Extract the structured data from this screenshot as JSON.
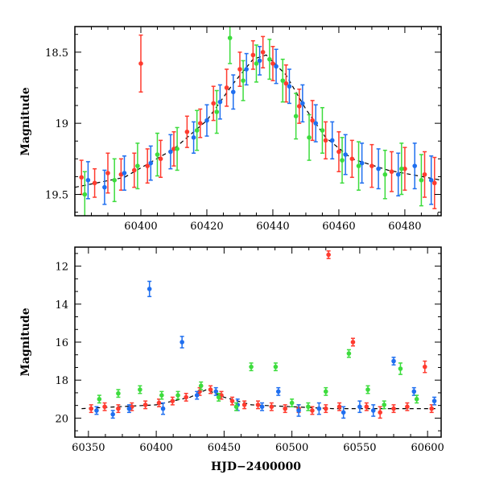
{
  "chart_data": [
    {
      "type": "scatter",
      "title": "",
      "xlabel": "",
      "ylabel": "Magnitude",
      "xlim": [
        60380,
        60491
      ],
      "ylim": [
        19.65,
        18.32
      ],
      "y_inverted": true,
      "x_ticks": [
        60400,
        60420,
        60440,
        60460,
        60480
      ],
      "x_tick_labels": [
        "60400",
        "60420",
        "60440",
        "60460",
        "60480"
      ],
      "y_ticks": [
        18.5,
        19,
        19.5
      ],
      "y_tick_labels": [
        "18.5",
        "19",
        "19.5"
      ],
      "grid": false,
      "series": [
        {
          "color": "#ff3b2f",
          "points": [
            {
              "x": 60382,
              "y": 19.38,
              "err": 0.12
            },
            {
              "x": 60386,
              "y": 19.42,
              "err": 0.1
            },
            {
              "x": 60390,
              "y": 19.35,
              "err": 0.14
            },
            {
              "x": 60394,
              "y": 19.36,
              "err": 0.11
            },
            {
              "x": 60398,
              "y": 19.33,
              "err": 0.12
            },
            {
              "x": 60400,
              "y": 18.58,
              "err": 0.2
            },
            {
              "x": 60402,
              "y": 19.3,
              "err": 0.12
            },
            {
              "x": 60406,
              "y": 19.25,
              "err": 0.13
            },
            {
              "x": 60410,
              "y": 19.18,
              "err": 0.12
            },
            {
              "x": 60414,
              "y": 19.06,
              "err": 0.11
            },
            {
              "x": 60418,
              "y": 19.0,
              "err": 0.1
            },
            {
              "x": 60422,
              "y": 18.86,
              "err": 0.12
            },
            {
              "x": 60426,
              "y": 18.75,
              "err": 0.13
            },
            {
              "x": 60430,
              "y": 18.62,
              "err": 0.12
            },
            {
              "x": 60434,
              "y": 18.52,
              "err": 0.1
            },
            {
              "x": 60437,
              "y": 18.5,
              "err": 0.11
            },
            {
              "x": 60440,
              "y": 18.58,
              "err": 0.12
            },
            {
              "x": 60444,
              "y": 18.72,
              "err": 0.13
            },
            {
              "x": 60448,
              "y": 18.88,
              "err": 0.12
            },
            {
              "x": 60452,
              "y": 18.98,
              "err": 0.14
            },
            {
              "x": 60456,
              "y": 19.12,
              "err": 0.13
            },
            {
              "x": 60460,
              "y": 19.2,
              "err": 0.14
            },
            {
              "x": 60464,
              "y": 19.25,
              "err": 0.13
            },
            {
              "x": 60470,
              "y": 19.3,
              "err": 0.15
            },
            {
              "x": 60476,
              "y": 19.34,
              "err": 0.14
            },
            {
              "x": 60480,
              "y": 19.32,
              "err": 0.15
            },
            {
              "x": 60486,
              "y": 19.36,
              "err": 0.16
            },
            {
              "x": 60489,
              "y": 19.42,
              "err": 0.18
            }
          ]
        },
        {
          "color": "#1f6ff0",
          "points": [
            {
              "x": 60384,
              "y": 19.4,
              "err": 0.13
            },
            {
              "x": 60389,
              "y": 19.45,
              "err": 0.12
            },
            {
              "x": 60395,
              "y": 19.35,
              "err": 0.12
            },
            {
              "x": 60403,
              "y": 19.28,
              "err": 0.12
            },
            {
              "x": 60409,
              "y": 19.2,
              "err": 0.12
            },
            {
              "x": 60416,
              "y": 19.1,
              "err": 0.11
            },
            {
              "x": 60420,
              "y": 18.98,
              "err": 0.11
            },
            {
              "x": 60424,
              "y": 18.85,
              "err": 0.12
            },
            {
              "x": 60428,
              "y": 18.78,
              "err": 0.12
            },
            {
              "x": 60432,
              "y": 18.62,
              "err": 0.11
            },
            {
              "x": 60436,
              "y": 18.56,
              "err": 0.1
            },
            {
              "x": 60441,
              "y": 18.6,
              "err": 0.12
            },
            {
              "x": 60445,
              "y": 18.74,
              "err": 0.12
            },
            {
              "x": 60449,
              "y": 18.86,
              "err": 0.13
            },
            {
              "x": 60453,
              "y": 19.0,
              "err": 0.13
            },
            {
              "x": 60458,
              "y": 19.12,
              "err": 0.13
            },
            {
              "x": 60462,
              "y": 19.22,
              "err": 0.14
            },
            {
              "x": 60467,
              "y": 19.28,
              "err": 0.14
            },
            {
              "x": 60472,
              "y": 19.32,
              "err": 0.14
            },
            {
              "x": 60478,
              "y": 19.36,
              "err": 0.15
            },
            {
              "x": 60483,
              "y": 19.3,
              "err": 0.16
            },
            {
              "x": 60488,
              "y": 19.4,
              "err": 0.17
            }
          ]
        },
        {
          "color": "#3ddc3d",
          "points": [
            {
              "x": 60383,
              "y": 19.5,
              "err": 0.16
            },
            {
              "x": 60392,
              "y": 19.4,
              "err": 0.15
            },
            {
              "x": 60399,
              "y": 19.3,
              "err": 0.16
            },
            {
              "x": 60405,
              "y": 19.22,
              "err": 0.15
            },
            {
              "x": 60411,
              "y": 19.18,
              "err": 0.15
            },
            {
              "x": 60417,
              "y": 19.05,
              "err": 0.14
            },
            {
              "x": 60423,
              "y": 18.92,
              "err": 0.15
            },
            {
              "x": 60427,
              "y": 18.4,
              "err": 0.18
            },
            {
              "x": 60431,
              "y": 18.7,
              "err": 0.14
            },
            {
              "x": 60435,
              "y": 18.58,
              "err": 0.13
            },
            {
              "x": 60439,
              "y": 18.55,
              "err": 0.14
            },
            {
              "x": 60443,
              "y": 18.7,
              "err": 0.15
            },
            {
              "x": 60447,
              "y": 18.95,
              "err": 0.16
            },
            {
              "x": 60451,
              "y": 19.1,
              "err": 0.16
            },
            {
              "x": 60455,
              "y": 19.05,
              "err": 0.16
            },
            {
              "x": 60461,
              "y": 19.26,
              "err": 0.16
            },
            {
              "x": 60466,
              "y": 19.3,
              "err": 0.17
            },
            {
              "x": 60474,
              "y": 19.36,
              "err": 0.17
            },
            {
              "x": 60479,
              "y": 19.32,
              "err": 0.18
            },
            {
              "x": 60485,
              "y": 19.4,
              "err": 0.18
            }
          ]
        }
      ],
      "model_curve": [
        {
          "x": 60380,
          "y": 19.45
        },
        {
          "x": 60395,
          "y": 19.38
        },
        {
          "x": 60410,
          "y": 19.18
        },
        {
          "x": 60420,
          "y": 18.98
        },
        {
          "x": 60428,
          "y": 18.72
        },
        {
          "x": 60434,
          "y": 18.55
        },
        {
          "x": 60438,
          "y": 18.52
        },
        {
          "x": 60444,
          "y": 18.66
        },
        {
          "x": 60450,
          "y": 18.9
        },
        {
          "x": 60456,
          "y": 19.1
        },
        {
          "x": 60464,
          "y": 19.25
        },
        {
          "x": 60475,
          "y": 19.33
        },
        {
          "x": 60491,
          "y": 19.4
        }
      ]
    },
    {
      "type": "scatter",
      "title": "",
      "xlabel": "HJD−2400000",
      "ylabel": "Magnitude",
      "xlim": [
        60340,
        60610
      ],
      "ylim": [
        21,
        11
      ],
      "y_inverted": true,
      "x_ticks": [
        60350,
        60400,
        60450,
        60500,
        60550,
        60600
      ],
      "x_tick_labels": [
        "60350",
        "60400",
        "60450",
        "60500",
        "60550",
        "60600"
      ],
      "y_ticks": [
        12,
        14,
        16,
        18,
        20
      ],
      "y_tick_labels": [
        "12",
        "14",
        "16",
        "18",
        "20"
      ],
      "grid": false,
      "series": [
        {
          "color": "#ff3b2f",
          "points": [
            {
              "x": 60352,
              "y": 19.5,
              "err": 0.2
            },
            {
              "x": 60362,
              "y": 19.4,
              "err": 0.2
            },
            {
              "x": 60372,
              "y": 19.5,
              "err": 0.2
            },
            {
              "x": 60382,
              "y": 19.4,
              "err": 0.2
            },
            {
              "x": 60392,
              "y": 19.3,
              "err": 0.2
            },
            {
              "x": 60402,
              "y": 19.2,
              "err": 0.2
            },
            {
              "x": 60412,
              "y": 19.1,
              "err": 0.2
            },
            {
              "x": 60422,
              "y": 18.9,
              "err": 0.2
            },
            {
              "x": 60432,
              "y": 18.6,
              "err": 0.2
            },
            {
              "x": 60440,
              "y": 18.5,
              "err": 0.2
            },
            {
              "x": 60448,
              "y": 18.8,
              "err": 0.2
            },
            {
              "x": 60456,
              "y": 19.1,
              "err": 0.2
            },
            {
              "x": 60465,
              "y": 19.3,
              "err": 0.2
            },
            {
              "x": 60475,
              "y": 19.3,
              "err": 0.2
            },
            {
              "x": 60485,
              "y": 19.4,
              "err": 0.2
            },
            {
              "x": 60495,
              "y": 19.5,
              "err": 0.2
            },
            {
              "x": 60505,
              "y": 19.5,
              "err": 0.2
            },
            {
              "x": 60515,
              "y": 19.6,
              "err": 0.2
            },
            {
              "x": 60525,
              "y": 19.5,
              "err": 0.2
            },
            {
              "x": 60527,
              "y": 11.4,
              "err": 0.2
            },
            {
              "x": 60535,
              "y": 19.4,
              "err": 0.2
            },
            {
              "x": 60545,
              "y": 16.0,
              "err": 0.2
            },
            {
              "x": 60555,
              "y": 19.4,
              "err": 0.2
            },
            {
              "x": 60565,
              "y": 19.7,
              "err": 0.3
            },
            {
              "x": 60575,
              "y": 19.5,
              "err": 0.2
            },
            {
              "x": 60585,
              "y": 19.4,
              "err": 0.2
            },
            {
              "x": 60598,
              "y": 17.3,
              "err": 0.3
            },
            {
              "x": 60603,
              "y": 19.5,
              "err": 0.2
            }
          ]
        },
        {
          "color": "#1f6ff0",
          "points": [
            {
              "x": 60356,
              "y": 19.6,
              "err": 0.2
            },
            {
              "x": 60368,
              "y": 19.8,
              "err": 0.2
            },
            {
              "x": 60380,
              "y": 19.5,
              "err": 0.2
            },
            {
              "x": 60395,
              "y": 13.2,
              "err": 0.4
            },
            {
              "x": 60405,
              "y": 19.5,
              "err": 0.3
            },
            {
              "x": 60419,
              "y": 16.0,
              "err": 0.3
            },
            {
              "x": 60430,
              "y": 18.8,
              "err": 0.2
            },
            {
              "x": 60444,
              "y": 18.6,
              "err": 0.2
            },
            {
              "x": 60460,
              "y": 19.3,
              "err": 0.3
            },
            {
              "x": 60478,
              "y": 19.4,
              "err": 0.2
            },
            {
              "x": 60490,
              "y": 18.6,
              "err": 0.2
            },
            {
              "x": 60505,
              "y": 19.6,
              "err": 0.3
            },
            {
              "x": 60520,
              "y": 19.5,
              "err": 0.3
            },
            {
              "x": 60538,
              "y": 19.7,
              "err": 0.3
            },
            {
              "x": 60550,
              "y": 19.4,
              "err": 0.3
            },
            {
              "x": 60560,
              "y": 19.6,
              "err": 0.3
            },
            {
              "x": 60575,
              "y": 17.0,
              "err": 0.2
            },
            {
              "x": 60590,
              "y": 18.6,
              "err": 0.2
            },
            {
              "x": 60605,
              "y": 19.1,
              "err": 0.2
            }
          ]
        },
        {
          "color": "#3ddc3d",
          "points": [
            {
              "x": 60358,
              "y": 19.0,
              "err": 0.2
            },
            {
              "x": 60372,
              "y": 18.7,
              "err": 0.2
            },
            {
              "x": 60388,
              "y": 18.5,
              "err": 0.2
            },
            {
              "x": 60404,
              "y": 18.8,
              "err": 0.2
            },
            {
              "x": 60416,
              "y": 18.8,
              "err": 0.2
            },
            {
              "x": 60433,
              "y": 18.3,
              "err": 0.2
            },
            {
              "x": 60446,
              "y": 18.9,
              "err": 0.2
            },
            {
              "x": 60459,
              "y": 19.4,
              "err": 0.2
            },
            {
              "x": 60470,
              "y": 17.3,
              "err": 0.2
            },
            {
              "x": 60488,
              "y": 17.3,
              "err": 0.2
            },
            {
              "x": 60500,
              "y": 19.2,
              "err": 0.2
            },
            {
              "x": 60512,
              "y": 19.4,
              "err": 0.2
            },
            {
              "x": 60525,
              "y": 18.6,
              "err": 0.2
            },
            {
              "x": 60542,
              "y": 16.6,
              "err": 0.2
            },
            {
              "x": 60556,
              "y": 18.5,
              "err": 0.2
            },
            {
              "x": 60568,
              "y": 19.3,
              "err": 0.2
            },
            {
              "x": 60580,
              "y": 17.4,
              "err": 0.3
            },
            {
              "x": 60592,
              "y": 19.0,
              "err": 0.2
            }
          ]
        }
      ],
      "model_curve": [
        {
          "x": 60345,
          "y": 19.5
        },
        {
          "x": 60400,
          "y": 19.3
        },
        {
          "x": 60425,
          "y": 18.9
        },
        {
          "x": 60437,
          "y": 18.5
        },
        {
          "x": 60450,
          "y": 18.9
        },
        {
          "x": 60470,
          "y": 19.3
        },
        {
          "x": 60530,
          "y": 19.5
        },
        {
          "x": 60608,
          "y": 19.5
        }
      ]
    }
  ]
}
